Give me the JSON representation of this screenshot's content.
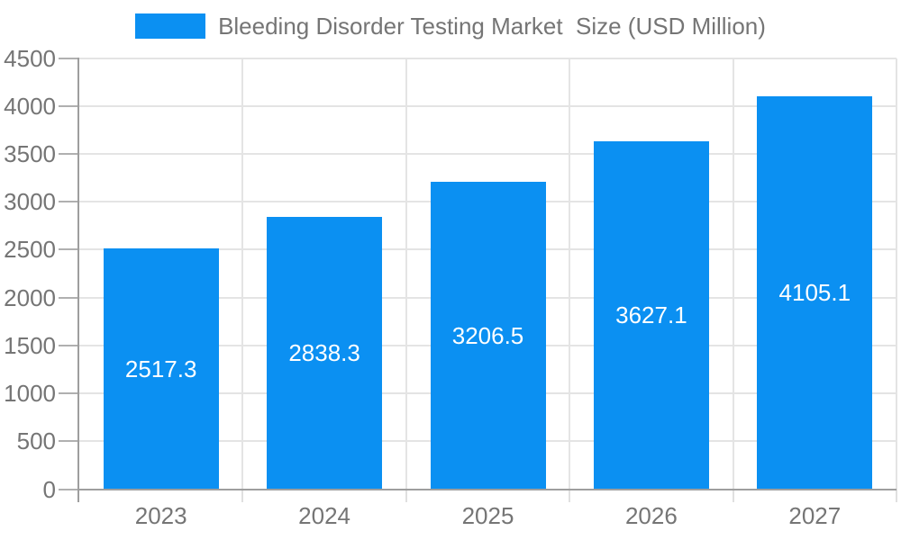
{
  "legend": {
    "swatch_color": "#0b90f2",
    "label": "Bleeding Disorder Testing Market  Size (USD Million)"
  },
  "chart_data": {
    "type": "bar",
    "title": "Bleeding Disorder Testing Market  Size (USD Million)",
    "categories": [
      "2023",
      "2024",
      "2025",
      "2026",
      "2027"
    ],
    "values": [
      2517.3,
      2838.3,
      3206.5,
      3627.1,
      4105.1
    ],
    "value_labels": [
      "2517.3",
      "2838.3",
      "3206.5",
      "3627.1",
      "4105.1"
    ],
    "xlabel": "",
    "ylabel": "",
    "ylim": [
      0,
      4500
    ],
    "ytick_step": 500,
    "yticks": [
      0,
      500,
      1000,
      1500,
      2000,
      2500,
      3000,
      3500,
      4000,
      4500
    ],
    "grid": true,
    "legend_position": "top",
    "colors": {
      "bar": "#0b90f2",
      "bar_label_text": "#ffffff",
      "tick_label_text": "#757575",
      "gridline": "#e4e4e4",
      "axis_line": "#9e9e9e"
    }
  }
}
